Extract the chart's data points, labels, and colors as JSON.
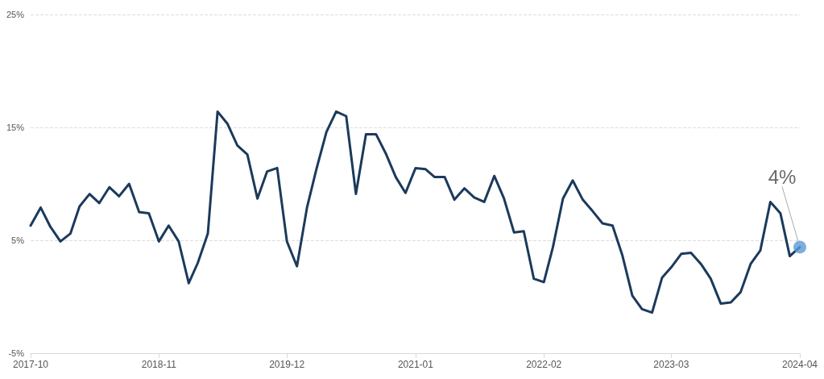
{
  "chart_data": {
    "type": "line",
    "x": [
      "2017-10",
      "2017-11",
      "2017-12",
      "2018-01",
      "2018-02",
      "2018-03",
      "2018-04",
      "2018-05",
      "2018-06",
      "2018-07",
      "2018-08",
      "2018-09",
      "2018-10",
      "2018-11",
      "2018-12",
      "2019-01",
      "2019-02",
      "2019-03",
      "2019-04",
      "2019-05",
      "2019-06",
      "2019-07",
      "2019-08",
      "2019-09",
      "2019-10",
      "2019-11",
      "2019-12",
      "2020-01",
      "2020-02",
      "2020-03",
      "2020-04",
      "2020-05",
      "2020-06",
      "2020-07",
      "2020-08",
      "2020-09",
      "2020-10",
      "2020-11",
      "2020-12",
      "2021-01",
      "2021-02",
      "2021-03",
      "2021-04",
      "2021-05",
      "2021-06",
      "2021-07",
      "2021-08",
      "2021-09",
      "2021-10",
      "2021-11",
      "2021-12",
      "2022-01",
      "2022-02",
      "2022-03",
      "2022-04",
      "2022-05",
      "2022-06",
      "2022-07",
      "2022-08",
      "2022-09",
      "2022-10",
      "2022-11",
      "2022-12",
      "2023-01",
      "2023-02",
      "2023-03",
      "2023-04",
      "2023-05",
      "2023-06",
      "2023-07",
      "2023-08",
      "2023-09",
      "2023-10",
      "2023-11",
      "2023-12",
      "2024-01",
      "2024-02",
      "2024-03",
      "2024-04"
    ],
    "series": [
      {
        "color": "#1b3a5c",
        "marker": "none",
        "values": [
          6.3,
          7.9,
          6.2,
          4.9,
          5.6,
          8.0,
          9.1,
          8.3,
          9.7,
          8.9,
          10.0,
          7.5,
          7.4,
          4.9,
          6.3,
          4.9,
          1.2,
          3.0,
          5.6,
          16.4,
          15.3,
          13.4,
          12.6,
          8.7,
          11.1,
          11.4,
          4.9,
          2.7,
          7.9,
          11.3,
          14.6,
          16.4,
          16.0,
          9.1,
          14.4,
          14.4,
          12.7,
          10.6,
          9.2,
          11.4,
          11.3,
          10.6,
          10.6,
          8.6,
          9.6,
          8.8,
          8.4,
          10.7,
          8.7,
          5.7,
          5.8,
          1.6,
          1.3,
          4.4,
          8.7,
          10.3,
          8.6,
          7.6,
          6.5,
          6.3,
          3.7,
          0.1,
          -1.1,
          -1.4,
          1.7,
          2.6,
          3.8,
          3.9,
          2.9,
          1.6,
          -0.6,
          -0.5,
          0.4,
          2.9,
          4.1,
          8.4,
          7.4,
          3.6,
          4.4
        ]
      },
      {
        "type": "scatter",
        "color": "#5b9bd5",
        "marker": "circle",
        "x": [
          "2024-04"
        ],
        "values": [
          4.4
        ]
      }
    ],
    "xlim": [
      "2017-10",
      "2024-04"
    ],
    "xticks": [
      {
        "value": "2017-10",
        "label": "2017-10"
      },
      {
        "value": "2018-11",
        "label": "2018-11"
      },
      {
        "value": "2019-12",
        "label": "2019-12"
      },
      {
        "value": "2021-01",
        "label": "2021-01"
      },
      {
        "value": "2022-02",
        "label": "2022-02"
      },
      {
        "value": "2023-03",
        "label": "2023-03"
      },
      {
        "value": "2024-04",
        "label": "2024-04"
      }
    ],
    "ylim": [
      -5,
      25
    ],
    "yticks": [
      {
        "value": -5,
        "label": "-5%"
      },
      {
        "value": 5,
        "label": "5%"
      },
      {
        "value": 15,
        "label": "15%"
      },
      {
        "value": 25,
        "label": "25%"
      }
    ],
    "grid": "y",
    "line_style": "solid",
    "annotations": [
      {
        "text": "4%",
        "x": "2024-04",
        "y": 4.4
      }
    ]
  }
}
